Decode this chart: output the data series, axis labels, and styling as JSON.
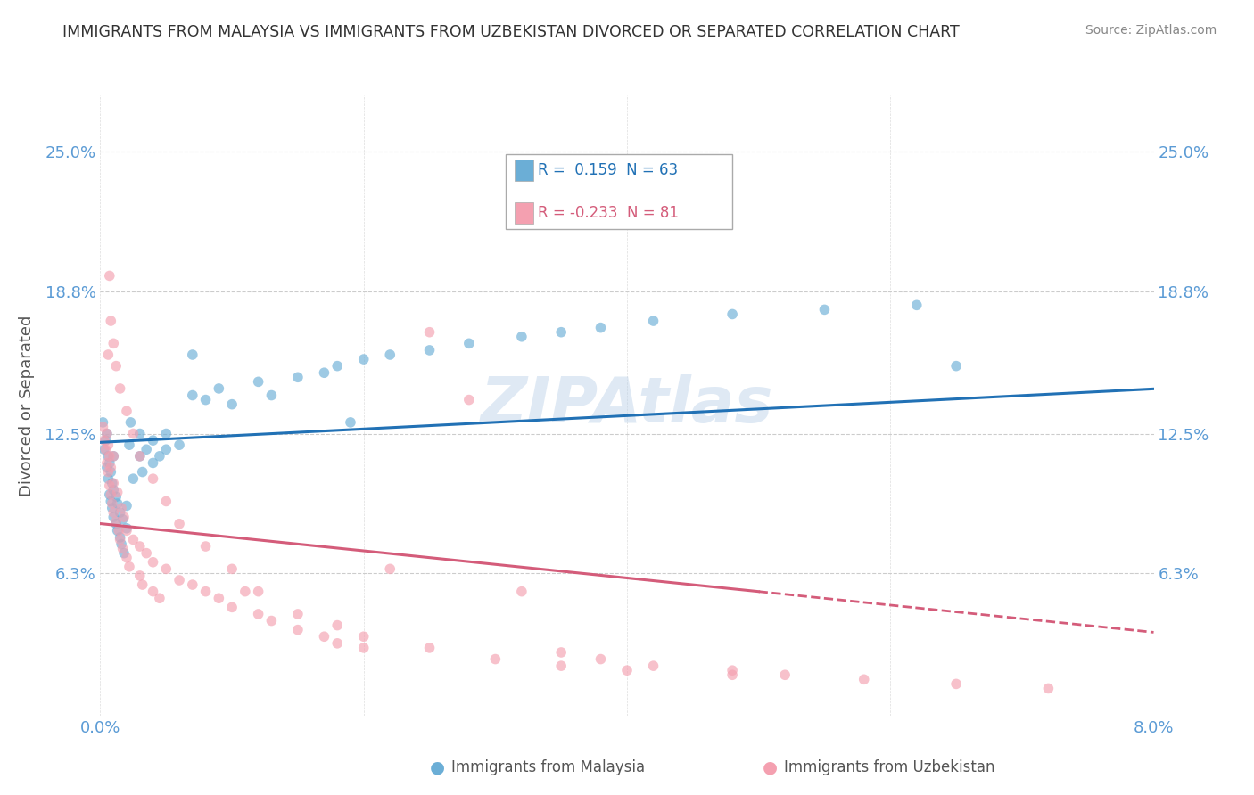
{
  "title": "IMMIGRANTS FROM MALAYSIA VS IMMIGRANTS FROM UZBEKISTAN DIVORCED OR SEPARATED CORRELATION CHART",
  "source": "Source: ZipAtlas.com",
  "ylabel": "Divorced or Separated",
  "xlim": [
    0.0,
    0.08
  ],
  "ylim": [
    0.0,
    0.275
  ],
  "xticks": [
    0.0,
    0.02,
    0.04,
    0.06,
    0.08
  ],
  "xticklabels": [
    "0.0%",
    "",
    "",
    "",
    "8.0%"
  ],
  "yticks": [
    0.063,
    0.125,
    0.188,
    0.25
  ],
  "yticklabels": [
    "6.3%",
    "12.5%",
    "18.8%",
    "25.0%"
  ],
  "malaysia_color": "#6baed6",
  "uzbekistan_color": "#f4a0b0",
  "malaysia_line_color": "#2171b5",
  "uzbekistan_line_color": "#d45c7a",
  "malaysia_R": 0.159,
  "malaysia_N": 63,
  "uzbekistan_R": -0.233,
  "uzbekistan_N": 81,
  "legend_label_1": "Immigrants from Malaysia",
  "legend_label_2": "Immigrants from Uzbekistan",
  "watermark": "ZIPAtlas",
  "malaysia_scatter_x": [
    0.0002,
    0.0003,
    0.0004,
    0.0005,
    0.0005,
    0.0006,
    0.0006,
    0.0007,
    0.0007,
    0.0008,
    0.0008,
    0.0009,
    0.0009,
    0.001,
    0.001,
    0.001,
    0.0012,
    0.0012,
    0.0013,
    0.0013,
    0.0015,
    0.0015,
    0.0016,
    0.0017,
    0.0018,
    0.002,
    0.002,
    0.0022,
    0.0023,
    0.0025,
    0.003,
    0.003,
    0.0032,
    0.0035,
    0.004,
    0.004,
    0.0045,
    0.005,
    0.005,
    0.006,
    0.007,
    0.008,
    0.009,
    0.01,
    0.012,
    0.013,
    0.015,
    0.017,
    0.018,
    0.02,
    0.022,
    0.025,
    0.028,
    0.032,
    0.035,
    0.038,
    0.042,
    0.048,
    0.055,
    0.062,
    0.007,
    0.019,
    0.065
  ],
  "malaysia_scatter_y": [
    0.13,
    0.118,
    0.122,
    0.11,
    0.125,
    0.105,
    0.115,
    0.098,
    0.112,
    0.095,
    0.108,
    0.092,
    0.103,
    0.088,
    0.1,
    0.115,
    0.085,
    0.097,
    0.082,
    0.094,
    0.079,
    0.09,
    0.076,
    0.087,
    0.072,
    0.083,
    0.093,
    0.12,
    0.13,
    0.105,
    0.115,
    0.125,
    0.108,
    0.118,
    0.112,
    0.122,
    0.115,
    0.118,
    0.125,
    0.12,
    0.142,
    0.14,
    0.145,
    0.138,
    0.148,
    0.142,
    0.15,
    0.152,
    0.155,
    0.158,
    0.16,
    0.162,
    0.165,
    0.168,
    0.17,
    0.172,
    0.175,
    0.178,
    0.18,
    0.182,
    0.16,
    0.13,
    0.155
  ],
  "uzbekistan_scatter_x": [
    0.0002,
    0.0003,
    0.0004,
    0.0005,
    0.0005,
    0.0006,
    0.0006,
    0.0007,
    0.0007,
    0.0008,
    0.0008,
    0.0009,
    0.001,
    0.001,
    0.001,
    0.0012,
    0.0013,
    0.0014,
    0.0015,
    0.0016,
    0.0017,
    0.0018,
    0.002,
    0.002,
    0.0022,
    0.0025,
    0.003,
    0.003,
    0.0032,
    0.0035,
    0.004,
    0.004,
    0.0045,
    0.005,
    0.006,
    0.007,
    0.008,
    0.009,
    0.01,
    0.011,
    0.012,
    0.013,
    0.015,
    0.017,
    0.018,
    0.02,
    0.022,
    0.025,
    0.028,
    0.032,
    0.035,
    0.038,
    0.042,
    0.048,
    0.052,
    0.0006,
    0.0007,
    0.0008,
    0.001,
    0.0012,
    0.0015,
    0.002,
    0.0025,
    0.003,
    0.004,
    0.005,
    0.006,
    0.008,
    0.01,
    0.012,
    0.015,
    0.018,
    0.02,
    0.025,
    0.03,
    0.035,
    0.04,
    0.048,
    0.058,
    0.065,
    0.072
  ],
  "uzbekistan_scatter_y": [
    0.128,
    0.122,
    0.118,
    0.112,
    0.125,
    0.108,
    0.12,
    0.102,
    0.115,
    0.098,
    0.11,
    0.094,
    0.09,
    0.103,
    0.115,
    0.086,
    0.099,
    0.082,
    0.078,
    0.092,
    0.074,
    0.088,
    0.07,
    0.082,
    0.066,
    0.078,
    0.062,
    0.075,
    0.058,
    0.072,
    0.055,
    0.068,
    0.052,
    0.065,
    0.06,
    0.058,
    0.055,
    0.052,
    0.048,
    0.055,
    0.045,
    0.042,
    0.038,
    0.035,
    0.032,
    0.03,
    0.065,
    0.17,
    0.14,
    0.055,
    0.028,
    0.025,
    0.022,
    0.02,
    0.018,
    0.16,
    0.195,
    0.175,
    0.165,
    0.155,
    0.145,
    0.135,
    0.125,
    0.115,
    0.105,
    0.095,
    0.085,
    0.075,
    0.065,
    0.055,
    0.045,
    0.04,
    0.035,
    0.03,
    0.025,
    0.022,
    0.02,
    0.018,
    0.016,
    0.014,
    0.012
  ]
}
